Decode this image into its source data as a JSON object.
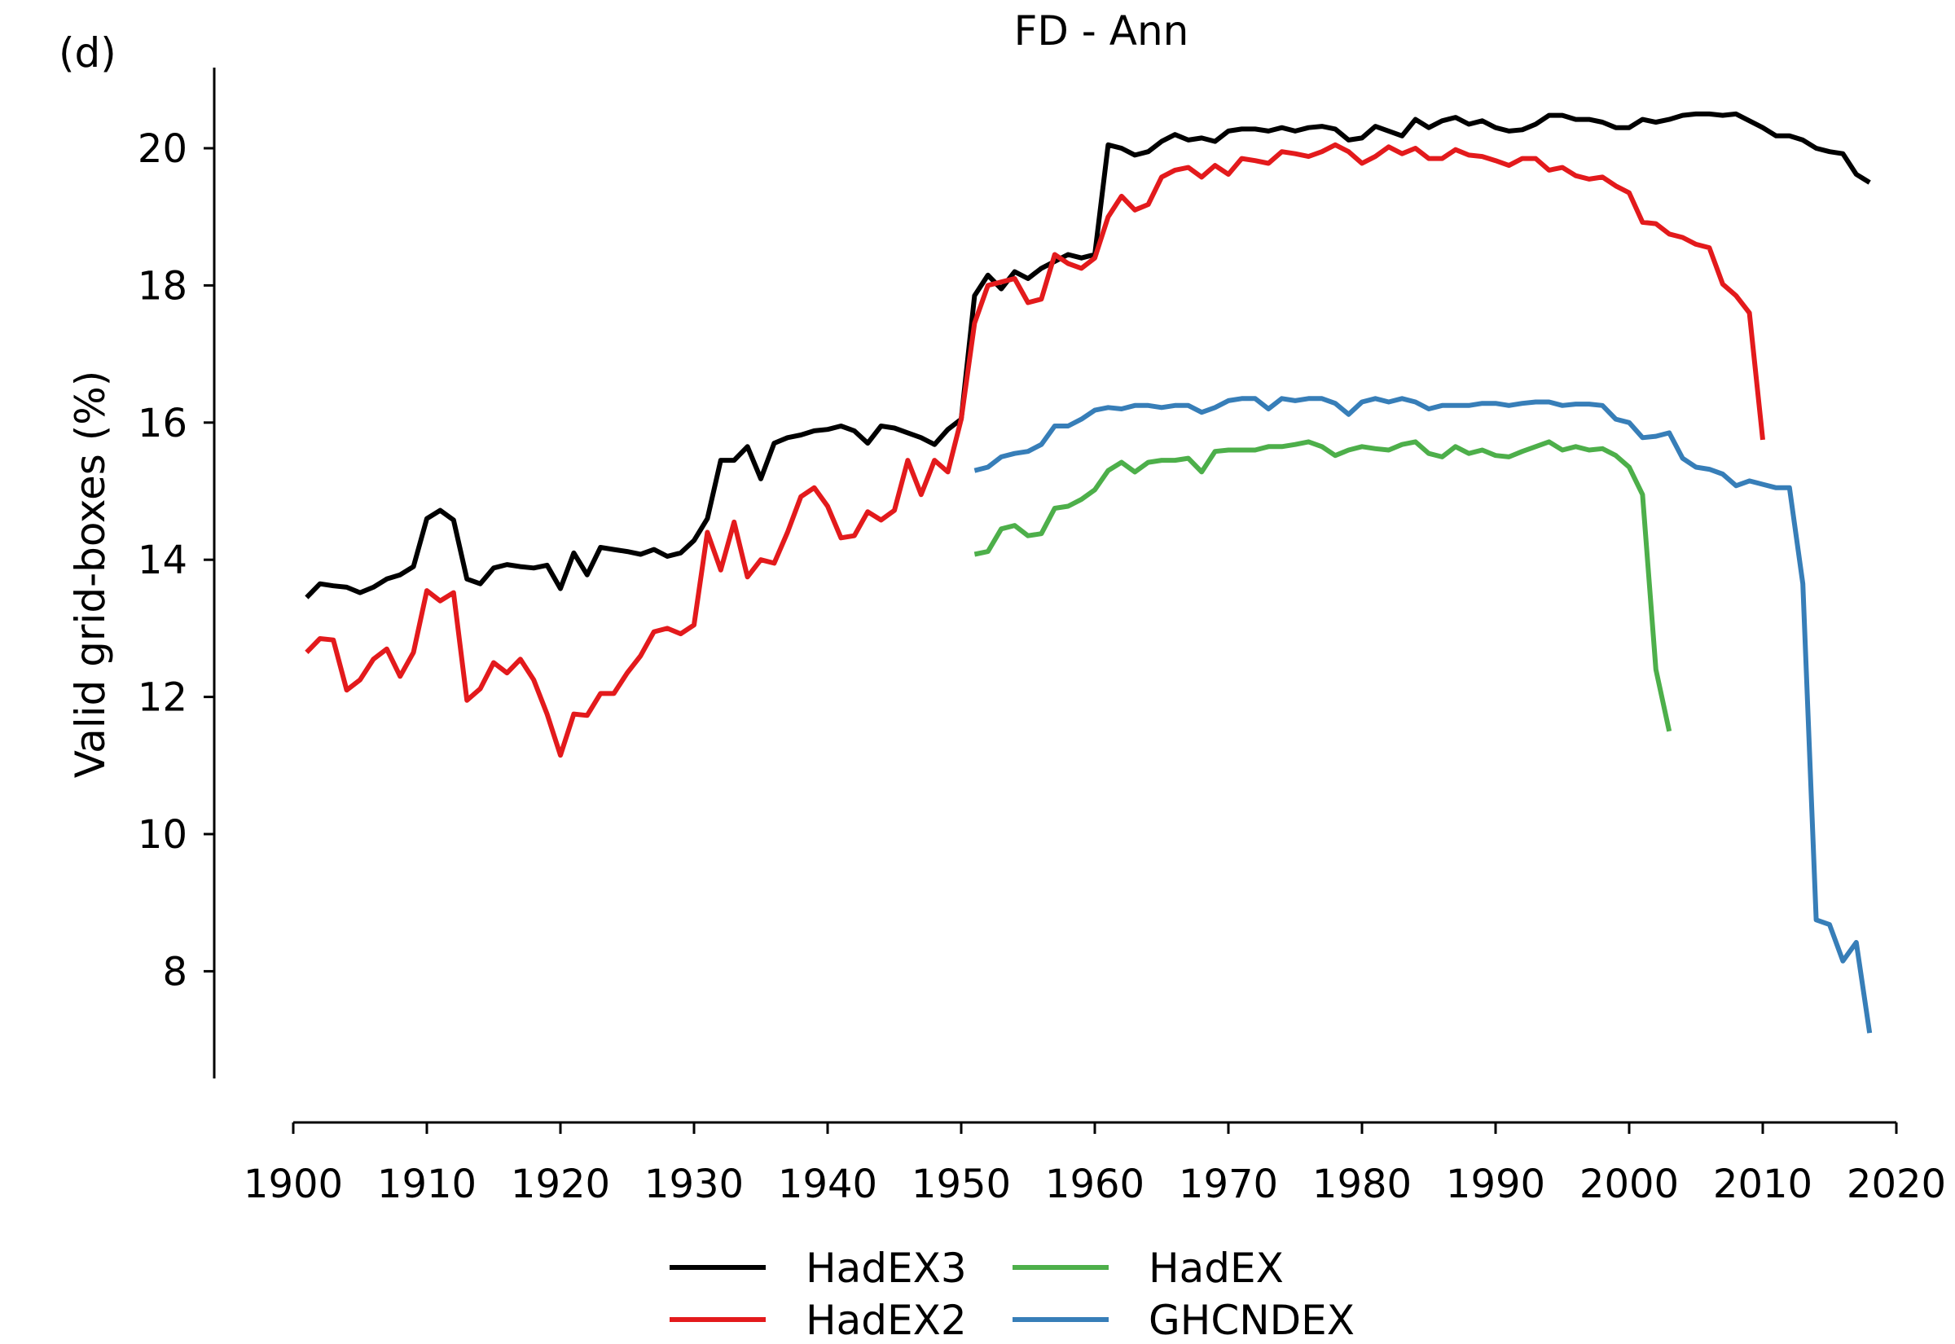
{
  "chart_data": {
    "type": "line",
    "panel_label": "(d)",
    "title": "FD - Ann",
    "xlabel": "",
    "ylabel": "Valid grid-boxes (%)",
    "xlim": [
      1900,
      2020
    ],
    "ylim": [
      6.2,
      21.2
    ],
    "x_ticks": [
      "1900",
      "1910",
      "1920",
      "1930",
      "1940",
      "1950",
      "1960",
      "1970",
      "1980",
      "1990",
      "2000",
      "2010",
      "2020"
    ],
    "y_ticks": [
      "8",
      "10",
      "12",
      "14",
      "16",
      "18",
      "20"
    ],
    "grid": false,
    "legend_position": "bottom-center",
    "series": [
      {
        "name": "HadEX3",
        "color": "#000000",
        "x_start": 1901,
        "values": [
          13.45,
          13.65,
          13.62,
          13.6,
          13.52,
          13.6,
          13.72,
          13.78,
          13.9,
          14.6,
          14.72,
          14.58,
          13.72,
          13.65,
          13.88,
          13.93,
          13.9,
          13.88,
          13.92,
          13.58,
          14.1,
          13.78,
          14.18,
          14.15,
          14.12,
          14.08,
          14.15,
          14.05,
          14.1,
          14.28,
          14.6,
          15.45,
          15.45,
          15.65,
          15.18,
          15.7,
          15.78,
          15.82,
          15.88,
          15.9,
          15.95,
          15.88,
          15.7,
          15.95,
          15.92,
          15.85,
          15.78,
          15.68,
          15.9,
          16.05,
          17.85,
          18.15,
          17.95,
          18.2,
          18.1,
          18.25,
          18.35,
          18.45,
          18.4,
          18.45,
          20.05,
          20.0,
          19.9,
          19.95,
          20.1,
          20.2,
          20.12,
          20.15,
          20.1,
          20.25,
          20.28,
          20.28,
          20.25,
          20.3,
          20.25,
          20.3,
          20.32,
          20.28,
          20.12,
          20.15,
          20.32,
          20.25,
          20.18,
          20.42,
          20.3,
          20.4,
          20.45,
          20.35,
          20.4,
          20.3,
          20.25,
          20.27,
          20.35,
          20.48,
          20.48,
          20.42,
          20.42,
          20.38,
          20.3,
          20.3,
          20.42,
          20.38,
          20.42,
          20.48,
          20.5,
          20.5,
          20.48,
          20.5,
          20.4,
          20.3,
          20.18,
          20.18,
          20.12,
          20.0,
          19.95,
          19.92,
          19.62,
          19.5
        ]
      },
      {
        "name": "HadEX2",
        "color": "#e31a1c",
        "x_start": 1901,
        "values": [
          12.65,
          12.85,
          12.83,
          12.1,
          12.25,
          12.55,
          12.7,
          12.3,
          12.65,
          13.55,
          13.4,
          13.52,
          11.95,
          12.12,
          12.5,
          12.35,
          12.55,
          12.25,
          11.75,
          11.15,
          11.75,
          11.73,
          12.05,
          12.05,
          12.35,
          12.6,
          12.95,
          13.0,
          12.92,
          13.05,
          14.4,
          13.85,
          14.55,
          13.75,
          14.0,
          13.95,
          14.4,
          14.92,
          15.05,
          14.78,
          14.32,
          14.35,
          14.7,
          14.58,
          14.72,
          15.45,
          14.95,
          15.45,
          15.28,
          16.05,
          17.45,
          18.0,
          18.05,
          18.1,
          17.75,
          17.8,
          18.45,
          18.32,
          18.25,
          18.4,
          19.0,
          19.3,
          19.1,
          19.18,
          19.58,
          19.68,
          19.72,
          19.58,
          19.75,
          19.62,
          19.85,
          19.82,
          19.78,
          19.95,
          19.92,
          19.88,
          19.95,
          20.05,
          19.95,
          19.78,
          19.88,
          20.02,
          19.92,
          20.0,
          19.85,
          19.85,
          19.98,
          19.9,
          19.88,
          19.82,
          19.75,
          19.85,
          19.85,
          19.68,
          19.72,
          19.6,
          19.55,
          19.58,
          19.45,
          19.35,
          18.92,
          18.9,
          18.75,
          18.7,
          18.6,
          18.55,
          18.02,
          17.85,
          17.6,
          15.75
        ]
      },
      {
        "name": "HadEX",
        "color": "#4daf4a",
        "x_start": 1951,
        "values": [
          14.08,
          14.12,
          14.45,
          14.5,
          14.35,
          14.38,
          14.75,
          14.78,
          14.88,
          15.02,
          15.3,
          15.42,
          15.28,
          15.42,
          15.45,
          15.45,
          15.48,
          15.28,
          15.58,
          15.6,
          15.6,
          15.6,
          15.65,
          15.65,
          15.68,
          15.72,
          15.65,
          15.52,
          15.6,
          15.65,
          15.62,
          15.6,
          15.68,
          15.72,
          15.55,
          15.5,
          15.65,
          15.55,
          15.6,
          15.52,
          15.5,
          15.58,
          15.65,
          15.72,
          15.6,
          15.65,
          15.6,
          15.62,
          15.52,
          15.35,
          14.95,
          12.4,
          11.5
        ]
      },
      {
        "name": "GHCNDEX",
        "color": "#377eb8",
        "x_start": 1951,
        "values": [
          15.3,
          15.35,
          15.5,
          15.55,
          15.58,
          15.68,
          15.95,
          15.95,
          16.05,
          16.18,
          16.22,
          16.2,
          16.25,
          16.25,
          16.22,
          16.25,
          16.25,
          16.15,
          16.22,
          16.32,
          16.35,
          16.35,
          16.2,
          16.35,
          16.32,
          16.35,
          16.35,
          16.28,
          16.12,
          16.3,
          16.35,
          16.3,
          16.35,
          16.3,
          16.2,
          16.25,
          16.25,
          16.25,
          16.28,
          16.28,
          16.25,
          16.28,
          16.3,
          16.3,
          16.25,
          16.27,
          16.27,
          16.25,
          16.05,
          16.0,
          15.78,
          15.8,
          15.85,
          15.48,
          15.35,
          15.32,
          15.25,
          15.08,
          15.15,
          15.1,
          15.05,
          15.05,
          13.65,
          8.75,
          8.68,
          8.15,
          8.42,
          7.1
        ]
      }
    ]
  }
}
